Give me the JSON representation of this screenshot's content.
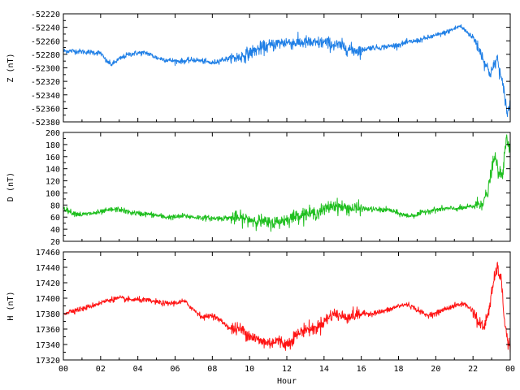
{
  "chart_data": {
    "type": "line",
    "xlabel": "Hour",
    "x_ticks": [
      "00",
      "02",
      "04",
      "06",
      "08",
      "10",
      "12",
      "14",
      "16",
      "18",
      "20",
      "22",
      "00"
    ],
    "xlim": [
      0,
      24
    ],
    "panels": [
      {
        "id": "z",
        "ylabel": "Z (nT)",
        "color": "#1f7fe6",
        "ylim": [
          -52380,
          -52220
        ],
        "y_ticks": [
          "-52220",
          "-52240",
          "-52260",
          "-52280",
          "-52300",
          "-52320",
          "-52340",
          "-52360",
          "-52380"
        ],
        "series": {
          "x": [
            0,
            0.5,
            1,
            1.5,
            2,
            2.3,
            2.6,
            3,
            3.5,
            4,
            4.5,
            5,
            5.5,
            6,
            6.5,
            7,
            7.5,
            8,
            8.5,
            9,
            9.5,
            10,
            10.5,
            11,
            11.5,
            12,
            12.5,
            13,
            13.5,
            14,
            14.5,
            15,
            15.5,
            16,
            16.5,
            17,
            17.5,
            18,
            18.5,
            19,
            19.5,
            20,
            20.5,
            21,
            21.3,
            21.6,
            22,
            22.3,
            22.6,
            22.9,
            23.1,
            23.3,
            23.5,
            23.7,
            23.85,
            24
          ],
          "y": [
            -52275,
            -52275,
            -52276,
            -52277,
            -52278,
            -52290,
            -52295,
            -52287,
            -52280,
            -52278,
            -52278,
            -52285,
            -52288,
            -52290,
            -52290,
            -52288,
            -52290,
            -52293,
            -52288,
            -52286,
            -52284,
            -52278,
            -52272,
            -52268,
            -52264,
            -52262,
            -52263,
            -52262,
            -52264,
            -52262,
            -52266,
            -52268,
            -52274,
            -52274,
            -52270,
            -52270,
            -52268,
            -52266,
            -52262,
            -52260,
            -52256,
            -52252,
            -52248,
            -52242,
            -52238,
            -52245,
            -52255,
            -52270,
            -52290,
            -52308,
            -52300,
            -52285,
            -52315,
            -52340,
            -52370,
            -52350
          ]
        }
      },
      {
        "id": "d",
        "ylabel": "D (nT)",
        "color": "#1fbf1f",
        "ylim": [
          20,
          200
        ],
        "y_ticks": [
          "200",
          "180",
          "160",
          "140",
          "120",
          "100",
          "80",
          "60",
          "40",
          "20"
        ],
        "series": {
          "x": [
            0,
            0.5,
            1,
            1.5,
            2,
            2.5,
            3,
            3.5,
            4,
            4.5,
            5,
            5.5,
            6,
            6.5,
            7,
            7.5,
            8,
            8.5,
            9,
            9.5,
            10,
            10.5,
            11,
            11.5,
            12,
            12.5,
            13,
            13.5,
            14,
            14.5,
            15,
            15.5,
            16,
            16.5,
            17,
            17.5,
            18,
            18.5,
            19,
            19.5,
            20,
            20.5,
            21,
            21.5,
            22,
            22.5,
            22.8,
            23,
            23.2,
            23.4,
            23.6,
            23.8,
            24
          ],
          "y": [
            75,
            67,
            64,
            66,
            68,
            72,
            73,
            68,
            66,
            65,
            63,
            60,
            60,
            62,
            60,
            59,
            58,
            58,
            59,
            58,
            56,
            54,
            50,
            52,
            56,
            62,
            66,
            66,
            72,
            80,
            76,
            74,
            74,
            73,
            72,
            72,
            66,
            62,
            64,
            70,
            72,
            74,
            74,
            75,
            78,
            84,
            100,
            140,
            160,
            128,
            135,
            190,
            168
          ]
        }
      },
      {
        "id": "h",
        "ylabel": "H (nT)",
        "color": "#ff1414",
        "ylim": [
          17320,
          17460
        ],
        "y_ticks": [
          "17460",
          "17440",
          "17420",
          "17400",
          "17380",
          "17360",
          "17340",
          "17320"
        ],
        "series": {
          "x": [
            0,
            0.5,
            1,
            1.5,
            2,
            2.5,
            3,
            3.5,
            4,
            4.5,
            5,
            5.5,
            6,
            6.5,
            7,
            7.5,
            8,
            8.5,
            9,
            9.5,
            10,
            10.5,
            11,
            11.5,
            12,
            12.5,
            13,
            13.5,
            14,
            14.5,
            15,
            15.5,
            16,
            16.5,
            17,
            17.5,
            18,
            18.5,
            19,
            19.5,
            20,
            20.5,
            21,
            21.5,
            22,
            22.3,
            22.6,
            22.9,
            23.1,
            23.3,
            23.5,
            23.7,
            23.85,
            24
          ],
          "y": [
            17380,
            17384,
            17386,
            17390,
            17394,
            17398,
            17400,
            17398,
            17398,
            17397,
            17395,
            17393,
            17394,
            17396,
            17385,
            17375,
            17378,
            17370,
            17360,
            17360,
            17352,
            17345,
            17342,
            17345,
            17340,
            17352,
            17360,
            17360,
            17370,
            17380,
            17376,
            17377,
            17380,
            17380,
            17382,
            17385,
            17390,
            17392,
            17385,
            17378,
            17380,
            17386,
            17390,
            17393,
            17384,
            17368,
            17362,
            17390,
            17420,
            17440,
            17425,
            17370,
            17345,
            17335
          ]
        }
      }
    ]
  }
}
